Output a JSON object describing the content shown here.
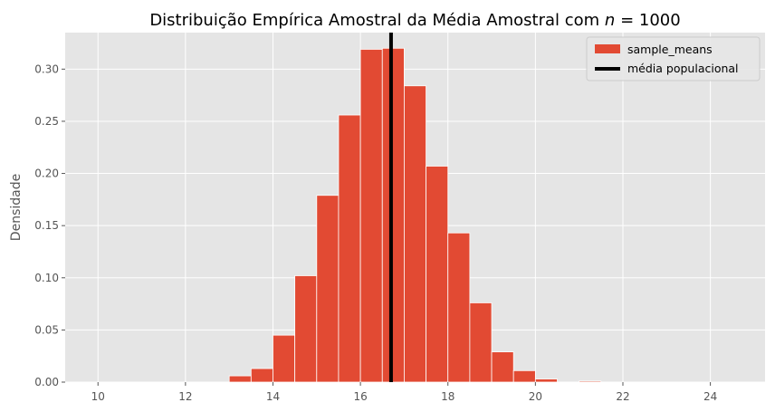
{
  "chart_data": {
    "type": "bar",
    "title": "Distribuição Empírica Amostral da Média Amostral com ",
    "title_math": "n = 1000",
    "xlabel": "",
    "ylabel": "Densidade",
    "xlim": [
      9.25,
      25.25
    ],
    "ylim": [
      0,
      0.335
    ],
    "xticks": [
      10,
      12,
      14,
      16,
      18,
      20,
      22,
      24
    ],
    "yticks": [
      0.0,
      0.05,
      0.1,
      0.15,
      0.2,
      0.25,
      0.3
    ],
    "bin_width": 0.5,
    "bins": [
      {
        "left": 13.0,
        "value": 0.006
      },
      {
        "left": 13.5,
        "value": 0.013
      },
      {
        "left": 14.0,
        "value": 0.045
      },
      {
        "left": 14.5,
        "value": 0.102
      },
      {
        "left": 15.0,
        "value": 0.179
      },
      {
        "left": 15.5,
        "value": 0.256
      },
      {
        "left": 16.0,
        "value": 0.319
      },
      {
        "left": 16.5,
        "value": 0.32
      },
      {
        "left": 17.0,
        "value": 0.284
      },
      {
        "left": 17.5,
        "value": 0.207
      },
      {
        "left": 18.0,
        "value": 0.143
      },
      {
        "left": 18.5,
        "value": 0.076
      },
      {
        "left": 19.0,
        "value": 0.029
      },
      {
        "left": 19.5,
        "value": 0.011
      },
      {
        "left": 20.0,
        "value": 0.003
      },
      {
        "left": 21.0,
        "value": 0.001
      }
    ],
    "population_mean": 16.7,
    "legend": {
      "placement": "top-right",
      "entries": [
        "sample_means",
        "média populacional"
      ]
    },
    "grid": true,
    "colors": {
      "bars": "#E24A33",
      "mean_line": "#000000",
      "background": "#E5E5E5",
      "grid": "#FFFFFF"
    }
  }
}
